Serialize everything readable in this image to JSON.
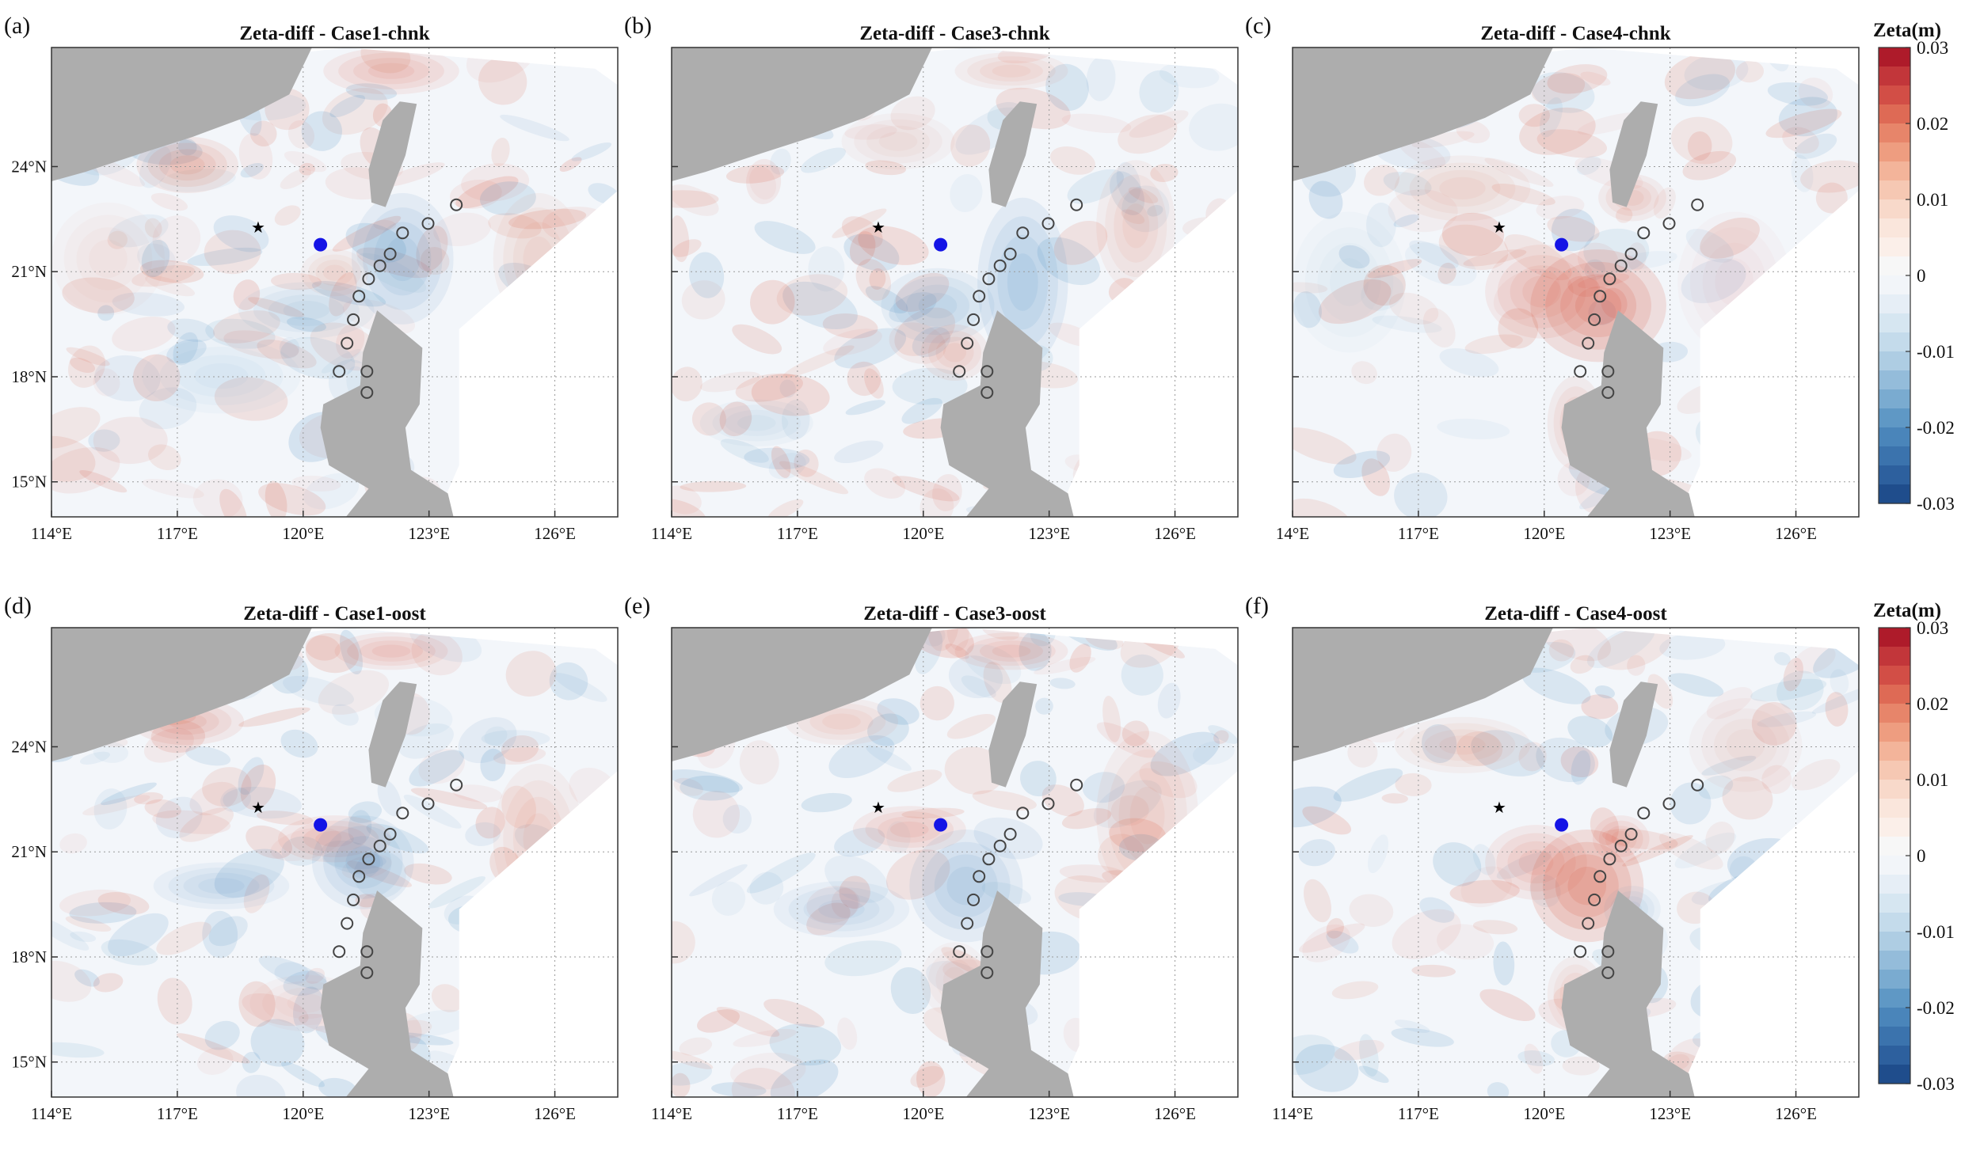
{
  "figure": {
    "colors": {
      "land": "#adadad",
      "ocean_neutral": "#f3f6fa",
      "frame": "#333333",
      "grid": "#9a9a9a",
      "marker_center": "#1414e6",
      "marker_ring": "#444444",
      "star": "#000000",
      "positive": "#d8583f",
      "negative": "#3f86bf"
    },
    "panels": [
      {
        "letter": "(a)",
        "title": "Zeta-diff - Case1-chnk",
        "x_ticks": [
          "114°E",
          "117°E",
          "120°E",
          "123°E",
          "126°E"
        ],
        "y_ticks": [
          "24°N",
          "21°N",
          "18°N",
          "15°N"
        ]
      },
      {
        "letter": "(b)",
        "title": "Zeta-diff - Case3-chnk",
        "x_ticks": [
          "114°E",
          "117°E",
          "120°E",
          "123°E",
          "126°E"
        ],
        "y_ticks": []
      },
      {
        "letter": "(c)",
        "title": "Zeta-diff - Case4-chnk",
        "x_ticks": [
          "14°E",
          "117°E",
          "120°E",
          "123°E",
          "126°E"
        ],
        "y_ticks": []
      },
      {
        "letter": "(d)",
        "title": "Zeta-diff - Case1-oost",
        "x_ticks": [
          "114°E",
          "117°E",
          "120°E",
          "123°E",
          "126°E"
        ],
        "y_ticks": [
          "24°N",
          "21°N",
          "18°N",
          "15°N"
        ]
      },
      {
        "letter": "(e)",
        "title": "Zeta-diff - Case3-oost",
        "x_ticks": [
          "114°E",
          "117°E",
          "120°E",
          "123°E",
          "126°E"
        ],
        "y_ticks": []
      },
      {
        "letter": "(f)",
        "title": "Zeta-diff - Case4-oost",
        "x_ticks": [
          "114°E",
          "117°E",
          "120°E",
          "123°E",
          "126°E"
        ],
        "y_ticks": []
      }
    ],
    "colorbar": {
      "label": "Zeta(m)",
      "ticks": [
        "0.03",
        "0.02",
        "0.01",
        "0",
        "-0.01",
        "-0.02",
        "-0.03"
      ],
      "min": -0.03,
      "max": 0.03
    }
  }
}
